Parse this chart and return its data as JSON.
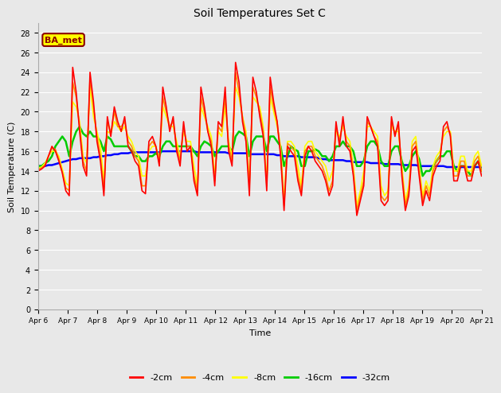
{
  "title": "Soil Temperatures Set C",
  "xlabel": "Time",
  "ylabel": "Soil Temperature (C)",
  "ylim": [
    0,
    29
  ],
  "yticks": [
    0,
    2,
    4,
    6,
    8,
    10,
    12,
    14,
    16,
    18,
    20,
    22,
    24,
    26,
    28
  ],
  "date_labels": [
    "Apr 6",
    "Apr 7",
    "Apr 8",
    "Apr 9",
    "Apr 10",
    "Apr 11",
    "Apr 12",
    "Apr 13",
    "Apr 14",
    "Apr 15",
    "Apr 16",
    "Apr 17",
    "Apr 18",
    "Apr 19",
    "Apr 20",
    "Apr 21"
  ],
  "legend_labels": [
    "-2cm",
    "-4cm",
    "-8cm",
    "-16cm",
    "-32cm"
  ],
  "legend_colors": [
    "#FF0000",
    "#FF8C00",
    "#FFFF00",
    "#00CC00",
    "#0000FF"
  ],
  "bg_color": "#E8E8E8",
  "annotation_text": "BA_met",
  "annotation_bg": "#FFFF00",
  "annotation_border": "#8B0000",
  "t_2cm": [
    14.0,
    14.2,
    14.5,
    15.5,
    16.5,
    16.0,
    15.0,
    13.8,
    12.0,
    11.5,
    24.5,
    22.0,
    18.0,
    14.5,
    13.5,
    24.0,
    21.0,
    17.0,
    15.0,
    11.5,
    19.5,
    17.5,
    20.5,
    19.0,
    18.0,
    19.5,
    16.5,
    16.0,
    15.0,
    14.5,
    12.0,
    11.7,
    17.0,
    17.5,
    16.5,
    14.5,
    22.5,
    20.5,
    18.0,
    19.5,
    16.0,
    14.5,
    19.0,
    16.0,
    16.5,
    13.0,
    11.5,
    22.5,
    20.5,
    18.0,
    16.5,
    12.5,
    19.0,
    18.5,
    22.5,
    16.0,
    14.5,
    25.0,
    23.0,
    19.0,
    17.0,
    11.5,
    23.5,
    22.0,
    19.5,
    17.5,
    12.0,
    23.5,
    21.0,
    19.0,
    15.5,
    10.0,
    16.5,
    16.0,
    15.5,
    13.0,
    11.5,
    15.5,
    16.5,
    16.0,
    15.0,
    14.5,
    14.0,
    13.0,
    11.5,
    12.5,
    19.0,
    16.5,
    19.5,
    16.5,
    16.0,
    13.5,
    9.5,
    11.0,
    12.5,
    19.5,
    18.5,
    17.5,
    16.5,
    11.0,
    10.5,
    11.0,
    19.5,
    17.5,
    19.0,
    13.5,
    10.0,
    11.5,
    16.0,
    16.5,
    13.5,
    10.5,
    12.0,
    11.0,
    13.5,
    14.5,
    15.0,
    18.5,
    19.0,
    17.5,
    13.0,
    13.0,
    14.5,
    14.5,
    13.0,
    13.0,
    14.5,
    15.0,
    13.5
  ],
  "t_4cm": [
    14.2,
    14.3,
    14.6,
    15.5,
    16.3,
    16.2,
    15.2,
    13.9,
    12.3,
    12.0,
    23.0,
    21.5,
    18.5,
    15.0,
    14.0,
    23.5,
    20.5,
    17.5,
    15.5,
    12.0,
    19.0,
    17.8,
    20.0,
    18.5,
    18.5,
    19.0,
    17.0,
    16.5,
    15.5,
    15.0,
    12.5,
    12.5,
    16.5,
    17.0,
    16.5,
    14.8,
    21.5,
    20.0,
    18.5,
    19.0,
    16.5,
    15.0,
    18.5,
    16.5,
    16.5,
    13.5,
    12.0,
    21.5,
    20.0,
    18.0,
    17.0,
    13.0,
    18.5,
    18.0,
    21.5,
    16.5,
    15.0,
    24.0,
    22.0,
    19.5,
    17.5,
    12.5,
    22.5,
    21.5,
    20.0,
    18.0,
    12.5,
    22.5,
    20.5,
    19.0,
    16.0,
    10.5,
    16.8,
    16.5,
    16.0,
    13.5,
    12.0,
    16.0,
    16.5,
    16.5,
    15.5,
    15.0,
    14.5,
    13.5,
    12.0,
    13.0,
    18.5,
    17.0,
    19.0,
    17.0,
    16.5,
    14.0,
    10.0,
    11.5,
    13.0,
    19.0,
    18.5,
    17.5,
    17.0,
    11.5,
    11.0,
    11.5,
    19.0,
    17.8,
    18.5,
    14.0,
    10.5,
    12.0,
    16.5,
    17.0,
    14.0,
    11.0,
    12.5,
    11.5,
    14.0,
    15.0,
    15.5,
    18.0,
    18.5,
    17.8,
    13.5,
    13.5,
    15.0,
    15.0,
    13.5,
    13.5,
    15.0,
    15.5,
    14.0
  ],
  "t_8cm": [
    14.3,
    14.4,
    14.8,
    15.5,
    16.0,
    16.0,
    15.5,
    14.2,
    12.8,
    12.5,
    21.0,
    20.5,
    19.0,
    15.5,
    14.8,
    22.5,
    19.5,
    18.0,
    16.5,
    13.0,
    18.0,
    17.8,
    19.0,
    18.5,
    18.0,
    18.5,
    17.5,
    17.0,
    16.0,
    15.5,
    13.5,
    13.5,
    16.0,
    16.5,
    16.5,
    15.2,
    20.5,
    19.5,
    18.5,
    18.5,
    17.0,
    15.5,
    18.0,
    17.0,
    17.0,
    14.5,
    12.5,
    20.5,
    19.5,
    18.5,
    17.5,
    13.5,
    18.0,
    17.5,
    20.5,
    17.0,
    15.5,
    22.5,
    21.5,
    19.5,
    18.0,
    13.0,
    21.5,
    21.0,
    20.5,
    18.5,
    13.0,
    21.5,
    20.0,
    18.5,
    16.5,
    11.0,
    17.0,
    17.0,
    16.5,
    14.5,
    12.5,
    16.5,
    17.0,
    17.0,
    16.0,
    15.5,
    15.0,
    14.5,
    13.0,
    14.0,
    18.0,
    17.5,
    18.5,
    17.5,
    17.0,
    14.5,
    10.5,
    12.0,
    14.0,
    18.5,
    18.5,
    18.0,
    17.5,
    12.5,
    11.5,
    12.0,
    18.5,
    18.0,
    18.0,
    14.5,
    11.0,
    12.5,
    17.0,
    17.5,
    14.5,
    11.5,
    13.0,
    12.0,
    14.5,
    15.5,
    16.0,
    17.5,
    18.0,
    18.0,
    14.0,
    14.0,
    15.5,
    15.5,
    14.0,
    14.0,
    15.5,
    16.0,
    14.5
  ],
  "t_16cm": [
    14.5,
    14.5,
    14.8,
    15.0,
    15.5,
    16.5,
    17.0,
    17.5,
    17.0,
    15.5,
    17.0,
    18.0,
    18.5,
    17.8,
    17.5,
    18.0,
    17.5,
    17.5,
    17.0,
    16.0,
    17.5,
    17.2,
    16.5,
    16.5,
    16.5,
    16.5,
    16.5,
    16.0,
    15.5,
    15.5,
    15.0,
    15.0,
    15.5,
    15.5,
    15.8,
    15.5,
    16.5,
    17.0,
    17.0,
    16.5,
    16.5,
    16.5,
    16.5,
    16.5,
    16.5,
    16.0,
    15.5,
    16.5,
    17.0,
    16.8,
    16.5,
    15.5,
    16.0,
    16.5,
    16.5,
    16.5,
    16.0,
    17.5,
    18.0,
    17.8,
    17.5,
    15.5,
    17.0,
    17.5,
    17.5,
    17.5,
    16.0,
    17.5,
    17.5,
    17.0,
    16.5,
    14.5,
    15.5,
    16.5,
    16.2,
    16.0,
    14.5,
    14.5,
    16.0,
    16.0,
    16.2,
    16.0,
    15.5,
    15.5,
    15.0,
    15.5,
    16.5,
    16.5,
    17.0,
    16.5,
    16.5,
    16.0,
    14.5,
    14.5,
    15.0,
    16.5,
    17.0,
    17.0,
    16.5,
    15.0,
    14.5,
    14.5,
    16.0,
    16.5,
    16.5,
    15.0,
    14.0,
    14.5,
    15.5,
    16.0,
    15.2,
    13.5,
    14.0,
    14.0,
    14.5,
    15.0,
    15.5,
    15.5,
    16.0,
    16.0,
    14.5,
    14.0,
    14.5,
    14.5,
    14.0,
    13.5,
    14.5,
    15.0,
    14.0
  ],
  "t_32cm": [
    14.5,
    14.5,
    14.5,
    14.6,
    14.6,
    14.7,
    14.8,
    14.9,
    15.0,
    15.1,
    15.2,
    15.2,
    15.3,
    15.3,
    15.3,
    15.3,
    15.4,
    15.4,
    15.5,
    15.5,
    15.6,
    15.6,
    15.7,
    15.7,
    15.8,
    15.8,
    15.8,
    15.9,
    15.9,
    15.9,
    15.9,
    15.9,
    15.9,
    15.9,
    15.9,
    15.9,
    16.0,
    16.0,
    16.0,
    16.0,
    16.0,
    16.0,
    16.0,
    16.0,
    16.0,
    16.0,
    15.9,
    15.9,
    15.9,
    15.9,
    15.9,
    15.9,
    15.9,
    15.9,
    15.9,
    15.8,
    15.8,
    15.8,
    15.8,
    15.8,
    15.8,
    15.7,
    15.7,
    15.7,
    15.7,
    15.7,
    15.7,
    15.7,
    15.7,
    15.6,
    15.6,
    15.5,
    15.5,
    15.5,
    15.5,
    15.5,
    15.4,
    15.4,
    15.4,
    15.4,
    15.4,
    15.3,
    15.2,
    15.2,
    15.1,
    15.1,
    15.1,
    15.1,
    15.1,
    15.0,
    15.0,
    14.9,
    14.9,
    14.9,
    14.9,
    14.9,
    14.8,
    14.8,
    14.8,
    14.8,
    14.7,
    14.7,
    14.7,
    14.7,
    14.7,
    14.6,
    14.6,
    14.6,
    14.6,
    14.6,
    14.5,
    14.5,
    14.5,
    14.5,
    14.5,
    14.5,
    14.5,
    14.5,
    14.4,
    14.4,
    14.4,
    14.4,
    14.4,
    14.4,
    14.4,
    14.4,
    14.4,
    14.4,
    14.4
  ]
}
